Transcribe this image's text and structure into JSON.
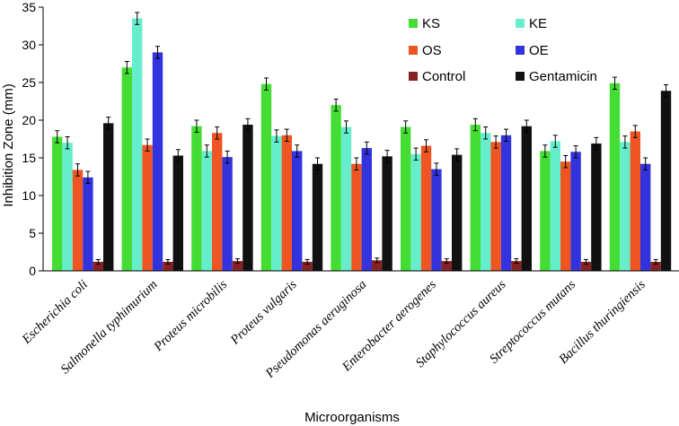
{
  "chart_data": {
    "type": "bar",
    "title": "",
    "xlabel": "Microorganisms",
    "ylabel": "Inhibition Zone (mm)",
    "ylim": [
      0,
      35
    ],
    "yticks": [
      "0",
      "5",
      "10",
      "15",
      "20",
      "25",
      "30",
      "35"
    ],
    "grid": false,
    "legend_position": "top-right",
    "categories": [
      "Escherichia coli",
      "Salmonella typhimurium",
      "Proteus microbilis",
      "Proteus vulgaris",
      "Pseudomonas aeruginosa",
      "Enterobacter aerogenes",
      "Staphylococcus aureus",
      "Streptococcus mutans",
      "Bacillus thuringiensis"
    ],
    "series": [
      {
        "name": "KS",
        "color": "#44dd33",
        "values": [
          17.8,
          27.0,
          19.2,
          24.8,
          22.0,
          19.1,
          19.4,
          15.9,
          24.9
        ],
        "errors": [
          0.8,
          0.8,
          0.8,
          0.8,
          0.8,
          0.8,
          0.8,
          0.8,
          0.8
        ]
      },
      {
        "name": "KE",
        "color": "#66eecc",
        "values": [
          17.0,
          33.5,
          15.9,
          17.9,
          19.1,
          15.5,
          18.3,
          17.2,
          17.1
        ],
        "errors": [
          0.8,
          0.8,
          0.8,
          0.8,
          0.8,
          0.8,
          0.8,
          0.8,
          0.8
        ]
      },
      {
        "name": "OS",
        "color": "#ee5522",
        "values": [
          13.4,
          16.7,
          18.3,
          18.0,
          14.2,
          16.6,
          17.1,
          14.5,
          18.5
        ],
        "errors": [
          0.8,
          0.8,
          0.8,
          0.8,
          0.8,
          0.8,
          0.8,
          0.8,
          0.8
        ]
      },
      {
        "name": "OE",
        "color": "#3333dd",
        "values": [
          12.4,
          29.0,
          15.1,
          15.9,
          16.3,
          13.5,
          18.0,
          15.8,
          14.2
        ],
        "errors": [
          0.8,
          0.8,
          0.8,
          0.8,
          0.8,
          0.8,
          0.8,
          0.8,
          0.8
        ]
      },
      {
        "name": "Control",
        "color": "#882222",
        "values": [
          1.2,
          1.2,
          1.3,
          1.2,
          1.4,
          1.3,
          1.3,
          1.2,
          1.2
        ],
        "errors": [
          0.3,
          0.3,
          0.3,
          0.3,
          0.3,
          0.3,
          0.3,
          0.3,
          0.3
        ]
      },
      {
        "name": "Gentamicin",
        "color": "#111111",
        "values": [
          19.6,
          15.3,
          19.4,
          14.2,
          15.2,
          15.4,
          19.2,
          16.9,
          23.9
        ],
        "errors": [
          0.8,
          0.8,
          0.8,
          0.8,
          0.8,
          0.8,
          0.8,
          0.8,
          0.8
        ]
      }
    ]
  }
}
